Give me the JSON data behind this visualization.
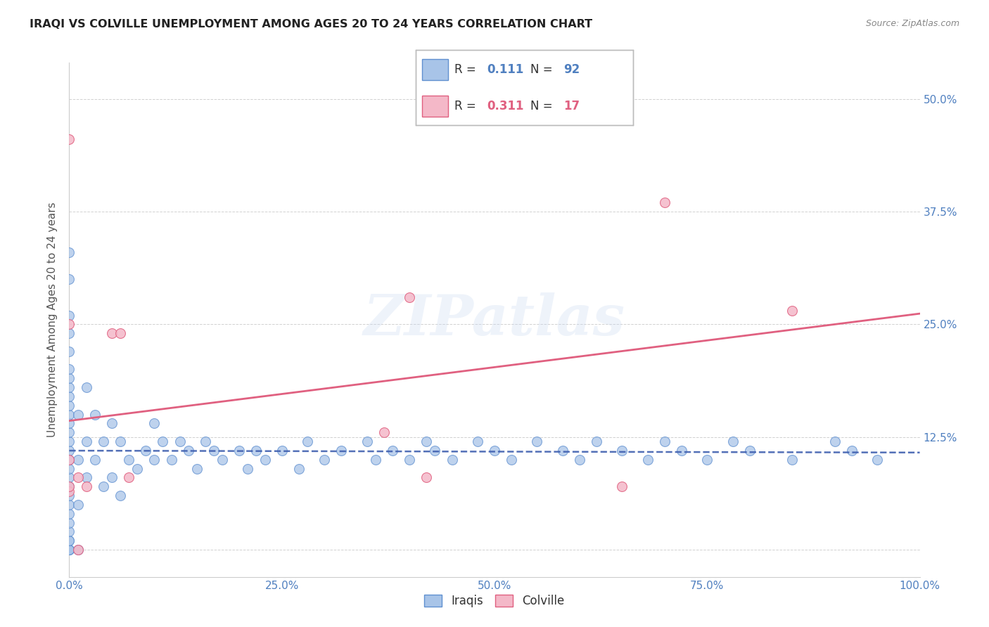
{
  "title": "IRAQI VS COLVILLE UNEMPLOYMENT AMONG AGES 20 TO 24 YEARS CORRELATION CHART",
  "source": "Source: ZipAtlas.com",
  "ylabel": "Unemployment Among Ages 20 to 24 years",
  "xlim": [
    0,
    1.0
  ],
  "ylim": [
    -0.03,
    0.54
  ],
  "xtick_vals": [
    0.0,
    0.125,
    0.25,
    0.375,
    0.5,
    0.625,
    0.75,
    0.875,
    1.0
  ],
  "xtick_labels": [
    "0.0%",
    "",
    "25.0%",
    "",
    "50.0%",
    "",
    "75.0%",
    "",
    "100.0%"
  ],
  "ytick_vals": [
    0.0,
    0.125,
    0.25,
    0.375,
    0.5
  ],
  "ytick_labels": [
    "",
    "12.5%",
    "25.0%",
    "37.5%",
    "50.0%"
  ],
  "iraqis_color": "#a8c4e8",
  "colville_color": "#f4b8c8",
  "iraqis_edge_color": "#6090d0",
  "colville_edge_color": "#e06080",
  "trendline_iraqi_color": "#4060b0",
  "trendline_colville_color": "#e06080",
  "legend_R_iraqi": "0.111",
  "legend_N_iraqi": "92",
  "legend_R_colville": "0.311",
  "legend_N_colville": "17",
  "watermark": "ZIPatlas",
  "iraqi_x": [
    0.0,
    0.0,
    0.0,
    0.0,
    0.0,
    0.0,
    0.0,
    0.0,
    0.0,
    0.0,
    0.0,
    0.0,
    0.0,
    0.0,
    0.0,
    0.0,
    0.0,
    0.0,
    0.0,
    0.0,
    0.0,
    0.0,
    0.0,
    0.0,
    0.0,
    0.0,
    0.0,
    0.0,
    0.0,
    0.0,
    0.01,
    0.01,
    0.01,
    0.01,
    0.02,
    0.02,
    0.02,
    0.03,
    0.03,
    0.04,
    0.04,
    0.05,
    0.05,
    0.06,
    0.06,
    0.07,
    0.08,
    0.09,
    0.1,
    0.1,
    0.11,
    0.12,
    0.13,
    0.14,
    0.15,
    0.16,
    0.17,
    0.18,
    0.2,
    0.21,
    0.22,
    0.23,
    0.25,
    0.27,
    0.28,
    0.3,
    0.32,
    0.35,
    0.36,
    0.38,
    0.4,
    0.42,
    0.43,
    0.45,
    0.48,
    0.5,
    0.52,
    0.55,
    0.58,
    0.6,
    0.62,
    0.65,
    0.68,
    0.7,
    0.72,
    0.75,
    0.78,
    0.8,
    0.85,
    0.9,
    0.92,
    0.95
  ],
  "iraqi_y": [
    0.0,
    0.0,
    0.0,
    0.0,
    0.01,
    0.01,
    0.02,
    0.03,
    0.04,
    0.05,
    0.06,
    0.07,
    0.08,
    0.09,
    0.1,
    0.11,
    0.12,
    0.13,
    0.14,
    0.15,
    0.16,
    0.17,
    0.18,
    0.19,
    0.2,
    0.22,
    0.24,
    0.26,
    0.3,
    0.33,
    0.0,
    0.05,
    0.1,
    0.15,
    0.08,
    0.12,
    0.18,
    0.1,
    0.15,
    0.07,
    0.12,
    0.08,
    0.14,
    0.06,
    0.12,
    0.1,
    0.09,
    0.11,
    0.1,
    0.14,
    0.12,
    0.1,
    0.12,
    0.11,
    0.09,
    0.12,
    0.11,
    0.1,
    0.11,
    0.09,
    0.11,
    0.1,
    0.11,
    0.09,
    0.12,
    0.1,
    0.11,
    0.12,
    0.1,
    0.11,
    0.1,
    0.12,
    0.11,
    0.1,
    0.12,
    0.11,
    0.1,
    0.12,
    0.11,
    0.1,
    0.12,
    0.11,
    0.1,
    0.12,
    0.11,
    0.1,
    0.12,
    0.11,
    0.1,
    0.12,
    0.11,
    0.1
  ],
  "colville_x": [
    0.0,
    0.0,
    0.0,
    0.0,
    0.0,
    0.01,
    0.01,
    0.02,
    0.05,
    0.06,
    0.07,
    0.37,
    0.4,
    0.42,
    0.65,
    0.7,
    0.85
  ],
  "colville_y": [
    0.455,
    0.065,
    0.07,
    0.1,
    0.25,
    0.0,
    0.08,
    0.07,
    0.24,
    0.24,
    0.08,
    0.13,
    0.28,
    0.08,
    0.07,
    0.385,
    0.265
  ]
}
